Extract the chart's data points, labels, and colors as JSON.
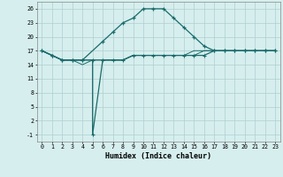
{
  "xlabel": "Humidex (Indice chaleur)",
  "bg_color": "#d6eeee",
  "grid_color": "#b0cece",
  "line_color": "#1a6b6b",
  "x_min": -0.5,
  "x_max": 23.5,
  "y_min": -2.5,
  "y_max": 27.5,
  "yticks": [
    -1,
    2,
    5,
    8,
    11,
    14,
    17,
    20,
    23,
    26
  ],
  "xticks": [
    0,
    1,
    2,
    3,
    4,
    5,
    6,
    7,
    8,
    9,
    10,
    11,
    12,
    13,
    14,
    15,
    16,
    17,
    18,
    19,
    20,
    21,
    22,
    23
  ],
  "series1_x": [
    0,
    1,
    2,
    3,
    4,
    6,
    7,
    8,
    9,
    10,
    11,
    12,
    13,
    14,
    15,
    16,
    17,
    18,
    19,
    20,
    21,
    22,
    23
  ],
  "series1_y": [
    17,
    16,
    15,
    15,
    15,
    19,
    21,
    23,
    24,
    26,
    26,
    26,
    24,
    22,
    20,
    18,
    17,
    17,
    17,
    17,
    17,
    17,
    17
  ],
  "series2_x": [
    0,
    1,
    2,
    3,
    4,
    5,
    5,
    6,
    7,
    8,
    9,
    10,
    11,
    12,
    13,
    14,
    15,
    16,
    17,
    18,
    19,
    20,
    21,
    22,
    23
  ],
  "series2_y": [
    17,
    16,
    15,
    15,
    15,
    15,
    -1,
    15,
    15,
    15,
    16,
    16,
    16,
    16,
    16,
    16,
    16,
    16,
    17,
    17,
    17,
    17,
    17,
    17,
    17
  ],
  "series3_x": [
    0,
    1,
    2,
    3,
    4,
    5,
    6,
    7,
    8,
    9,
    10,
    11,
    12,
    13,
    14,
    15,
    16,
    17,
    18,
    19,
    20,
    21,
    22,
    23
  ],
  "series3_y": [
    17,
    16,
    15,
    15,
    15,
    15,
    15,
    15,
    15,
    16,
    16,
    16,
    16,
    16,
    16,
    16,
    17,
    17,
    17,
    17,
    17,
    17,
    17,
    17
  ],
  "series4_x": [
    0,
    1,
    2,
    3,
    4,
    5,
    6,
    7,
    8,
    9,
    10,
    11,
    12,
    13,
    14,
    15,
    16,
    17,
    18,
    19,
    20,
    21,
    22,
    23
  ],
  "series4_y": [
    17,
    16,
    15,
    15,
    14,
    15,
    15,
    15,
    15,
    16,
    16,
    16,
    16,
    16,
    16,
    17,
    17,
    17,
    17,
    17,
    17,
    17,
    17,
    17
  ]
}
